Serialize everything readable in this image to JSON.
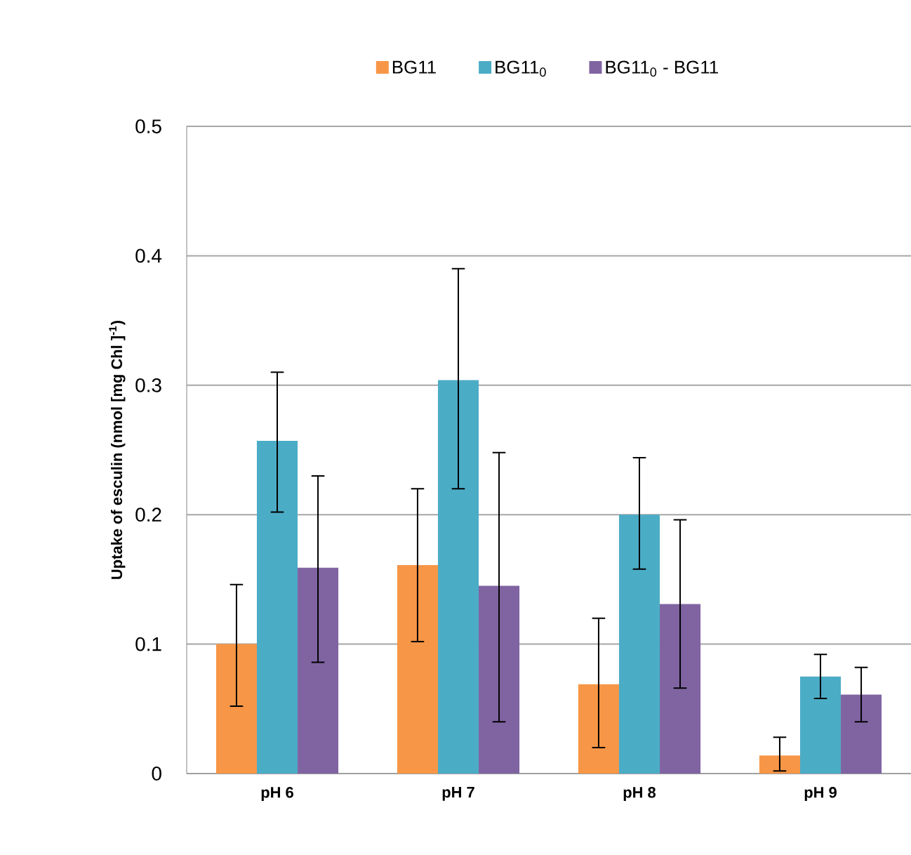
{
  "chart_data": {
    "type": "bar",
    "ylabel": "Uptake of esculin (nmol [mg Chl ]$^{-1}$)",
    "categories": [
      "pH 6",
      "pH 7",
      "pH 8",
      "pH 9"
    ],
    "series": [
      {
        "name": "BG11",
        "color": "#f79646",
        "values": [
          0.1,
          0.161,
          0.069,
          0.014
        ],
        "errors": [
          [
            0.052,
            0.146
          ],
          [
            0.102,
            0.22
          ],
          [
            0.02,
            0.12
          ],
          [
            0.002,
            0.028
          ]
        ]
      },
      {
        "name": "BG11$_{0}$",
        "color": "#4bacc6",
        "values": [
          0.257,
          0.304,
          0.2,
          0.075
        ],
        "errors": [
          [
            0.202,
            0.31
          ],
          [
            0.22,
            0.39
          ],
          [
            0.158,
            0.244
          ],
          [
            0.058,
            0.092
          ]
        ]
      },
      {
        "name": "BG11$_{0}$ - BG11",
        "color": "#8064a2",
        "values": [
          0.159,
          0.145,
          0.131,
          0.061
        ],
        "errors": [
          [
            0.086,
            0.23
          ],
          [
            0.04,
            0.248
          ],
          [
            0.066,
            0.196
          ],
          [
            0.04,
            0.082
          ]
        ]
      }
    ],
    "ylim": [
      0,
      0.5
    ],
    "yticks": [
      0,
      0.1,
      0.2,
      0.3,
      0.4,
      0.5
    ],
    "grid": "y",
    "legend": "top"
  }
}
